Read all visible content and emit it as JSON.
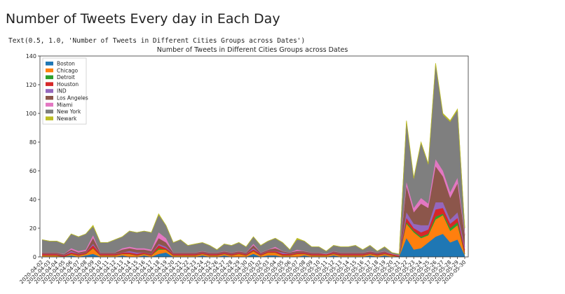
{
  "header": {
    "title": "Number of Tweets Every day in Each Day"
  },
  "output_text": "Text(0.5, 1.0, 'Number of Tweets in Different Cities Groups across Dates')",
  "chart_data": {
    "type": "stacked-area",
    "title": "Number of Tweets in Different Cities Groups across Dates",
    "legend": "upper left",
    "grid": false,
    "ylim": [
      0,
      140
    ],
    "yticks": [
      0,
      20,
      40,
      60,
      80,
      100,
      120,
      140
    ],
    "categories": [
      "2020-04-02",
      "2020-04-03",
      "2020-04-04",
      "2020-04-05",
      "2020-04-06",
      "2020-04-07",
      "2020-04-08",
      "2020-04-09",
      "2020-04-10",
      "2020-04-11",
      "2020-04-12",
      "2020-04-13",
      "2020-04-14",
      "2020-04-15",
      "2020-04-16",
      "2020-04-17",
      "2020-04-18",
      "2020-04-19",
      "2020-04-20",
      "2020-04-21",
      "2020-04-22",
      "2020-04-23",
      "2020-04-24",
      "2020-04-25",
      "2020-04-26",
      "2020-04-27",
      "2020-04-28",
      "2020-04-29",
      "2020-04-30",
      "2020-05-01",
      "2020-05-02",
      "2020-05-03",
      "2020-05-04",
      "2020-05-05",
      "2020-05-06",
      "2020-05-07",
      "2020-05-08",
      "2020-05-09",
      "2020-05-10",
      "2020-05-11",
      "2020-05-12",
      "2020-05-13",
      "2020-05-14",
      "2020-05-15",
      "2020-05-16",
      "2020-05-17",
      "2020-05-18",
      "2020-05-19",
      "2020-05-20",
      "2020-05-21",
      "2020-05-22",
      "2020-05-23",
      "2020-05-24",
      "2020-05-25",
      "2020-05-26",
      "2020-05-27",
      "2020-05-28",
      "2020-05-29",
      "2020-05-30"
    ],
    "series": [
      {
        "name": "Boston",
        "color": "#1f77b4",
        "values": [
          0,
          0,
          0,
          0,
          1,
          0,
          1,
          2,
          0,
          0,
          0,
          1,
          0,
          0,
          1,
          0,
          2,
          3,
          0,
          0,
          0,
          0,
          1,
          0,
          0,
          1,
          0,
          0,
          0,
          2,
          0,
          1,
          1,
          0,
          0,
          0,
          1,
          0,
          0,
          0,
          1,
          0,
          0,
          0,
          0,
          1,
          0,
          1,
          0,
          0,
          13,
          5,
          6,
          10,
          14,
          16,
          10,
          12,
          1
        ]
      },
      {
        "name": "Chicago",
        "color": "#ff7f0e",
        "values": [
          1,
          1,
          1,
          0,
          1,
          1,
          1,
          4,
          1,
          1,
          1,
          1,
          2,
          1,
          1,
          1,
          3,
          2,
          1,
          1,
          1,
          1,
          1,
          1,
          1,
          1,
          1,
          2,
          1,
          2,
          1,
          2,
          2,
          1,
          1,
          2,
          1,
          1,
          1,
          1,
          1,
          1,
          1,
          1,
          1,
          1,
          1,
          1,
          1,
          0,
          10,
          12,
          7,
          5,
          12,
          13,
          8,
          10,
          1
        ]
      },
      {
        "name": "Detroit",
        "color": "#2ca02c",
        "values": [
          0,
          0,
          0,
          0,
          0,
          0,
          0,
          0,
          0,
          0,
          0,
          0,
          0,
          0,
          0,
          0,
          1,
          0,
          0,
          0,
          0,
          0,
          0,
          0,
          0,
          0,
          0,
          0,
          0,
          0,
          0,
          0,
          0,
          0,
          0,
          0,
          0,
          0,
          0,
          0,
          0,
          0,
          0,
          0,
          0,
          0,
          0,
          0,
          0,
          0,
          1,
          1,
          1,
          1,
          2,
          1,
          2,
          2,
          0
        ]
      },
      {
        "name": "Houston",
        "color": "#d62728",
        "values": [
          1,
          1,
          1,
          1,
          1,
          1,
          1,
          2,
          1,
          1,
          1,
          1,
          1,
          1,
          1,
          1,
          2,
          1,
          1,
          1,
          1,
          1,
          1,
          1,
          1,
          1,
          1,
          1,
          1,
          1,
          1,
          1,
          1,
          1,
          1,
          1,
          1,
          1,
          1,
          1,
          1,
          1,
          1,
          1,
          1,
          1,
          1,
          1,
          1,
          1,
          3,
          2,
          3,
          3,
          5,
          4,
          3,
          3,
          3
        ]
      },
      {
        "name": "IND",
        "color": "#9467bd",
        "values": [
          0,
          0,
          0,
          0,
          1,
          0,
          0,
          1,
          0,
          0,
          0,
          0,
          1,
          1,
          0,
          0,
          1,
          1,
          0,
          0,
          0,
          0,
          0,
          0,
          0,
          0,
          0,
          0,
          0,
          1,
          0,
          0,
          0,
          1,
          0,
          0,
          0,
          0,
          0,
          0,
          0,
          0,
          0,
          0,
          0,
          0,
          0,
          0,
          0,
          0,
          4,
          3,
          5,
          3,
          5,
          4,
          3,
          4,
          2
        ]
      },
      {
        "name": "Los Angeles",
        "color": "#8c564b",
        "values": [
          1,
          1,
          1,
          1,
          1,
          1,
          1,
          4,
          1,
          1,
          1,
          2,
          2,
          2,
          2,
          2,
          4,
          3,
          1,
          1,
          1,
          1,
          1,
          1,
          1,
          1,
          1,
          1,
          1,
          2,
          1,
          1,
          2,
          1,
          1,
          1,
          1,
          1,
          1,
          0,
          1,
          1,
          1,
          1,
          1,
          1,
          1,
          1,
          0,
          0,
          18,
          8,
          15,
          12,
          25,
          18,
          15,
          20,
          8
        ]
      },
      {
        "name": "Miami",
        "color": "#e377c2",
        "values": [
          0,
          0,
          0,
          0,
          1,
          1,
          1,
          2,
          0,
          0,
          0,
          1,
          1,
          1,
          1,
          1,
          4,
          3,
          0,
          0,
          0,
          0,
          0,
          0,
          0,
          0,
          0,
          0,
          0,
          1,
          0,
          0,
          1,
          0,
          0,
          1,
          0,
          0,
          0,
          0,
          0,
          0,
          0,
          0,
          0,
          0,
          0,
          0,
          0,
          0,
          3,
          3,
          4,
          3,
          5,
          4,
          4,
          4,
          1
        ]
      },
      {
        "name": "New York",
        "color": "#7f7f7f",
        "values": [
          9,
          8,
          8,
          7,
          10,
          10,
          11,
          6,
          7,
          7,
          9,
          8,
          11,
          11,
          12,
          12,
          12,
          9,
          7,
          9,
          5,
          6,
          6,
          5,
          2,
          5,
          5,
          6,
          4,
          5,
          5,
          6,
          6,
          6,
          2,
          7,
          7,
          4,
          4,
          2,
          4,
          4,
          4,
          5,
          2,
          4,
          1,
          3,
          1,
          1,
          42,
          20,
          38,
          27,
          66,
          39,
          49,
          47,
          4
        ]
      },
      {
        "name": "Newark",
        "color": "#bcbd22",
        "values": [
          0,
          0,
          0,
          0,
          0,
          0,
          0,
          1,
          0,
          0,
          0,
          0,
          0,
          0,
          0,
          0,
          1,
          0,
          0,
          0,
          0,
          0,
          0,
          0,
          0,
          0,
          0,
          0,
          0,
          0,
          0,
          0,
          0,
          0,
          0,
          1,
          0,
          0,
          0,
          0,
          0,
          0,
          0,
          0,
          0,
          0,
          0,
          0,
          0,
          0,
          1,
          1,
          1,
          1,
          1,
          1,
          1,
          1,
          0
        ]
      }
    ]
  }
}
